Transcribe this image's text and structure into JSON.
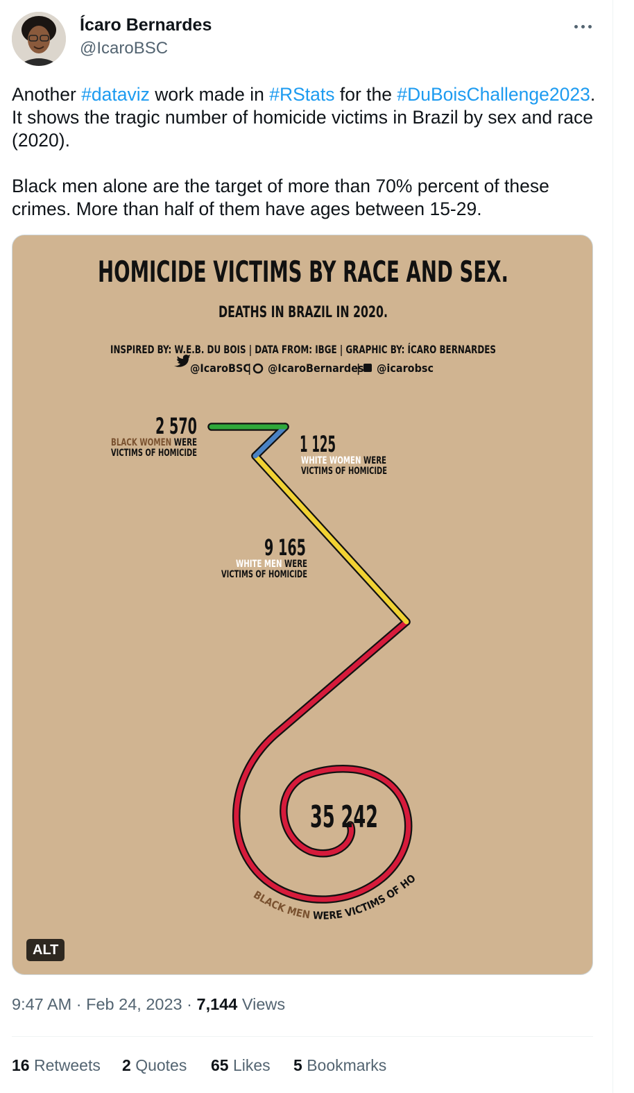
{
  "tweet": {
    "author": {
      "display_name": "Ícaro Bernardes",
      "handle": "@IcaroBSC",
      "avatar_icon": "user-avatar"
    },
    "text_segments": [
      {
        "text": "Another ",
        "type": "text"
      },
      {
        "text": "#dataviz",
        "type": "hashtag"
      },
      {
        "text": " work made in ",
        "type": "text"
      },
      {
        "text": "#RStats",
        "type": "hashtag"
      },
      {
        "text": " for the ",
        "type": "text"
      },
      {
        "text": "#DuBoisChallenge2023",
        "type": "hashtag"
      },
      {
        "text": ". It shows the tragic number of homicide victims in Brazil by sex and race (2020).\n\nBlack men alone are the target of more than 70% percent of these crimes. More than half of them have ages between 15-29.",
        "type": "text"
      }
    ],
    "media": {
      "alt_badge": "ALT",
      "colors": {
        "background": "#d0b491",
        "black_women": "#2fa83a",
        "white_women": "#4a82c3",
        "white_men": "#f1d233",
        "black_men": "#d61b3b",
        "label_brown": "#7a5230"
      },
      "chart_data": {
        "type": "spiral",
        "title": "HOMICIDE VICTIMS BY RACE AND SEX.",
        "subtitle": "DEATHS IN BRAZIL IN 2020.",
        "credits_line1": "INSPIRED BY: W.E.B. DU BOIS | DATA FROM: IBGE | GRAPHIC BY: ÍCARO BERNARDES",
        "credits_twitter": "@IcaroBSC",
        "credits_github": "@IcaroBernardes",
        "credits_linkedin": "@icarobsc",
        "categories": [
          "BLACK WOMEN",
          "WHITE WOMEN",
          "WHITE MEN",
          "BLACK MEN"
        ],
        "values": [
          2570,
          1125,
          9165,
          35242
        ],
        "value_labels": [
          "2 570",
          "1 125",
          "9 165",
          "35 242"
        ],
        "suffix_a": "WERE",
        "suffix_b": "VICTIMS OF HOMICIDE",
        "black_men_suffix": "WERE VICTIMS OF HOMICIDE"
      }
    },
    "time": "9:47 AM",
    "date": "Feb 24, 2023",
    "separator": "·",
    "views_count": "7,144",
    "views_label": "Views",
    "stats": [
      {
        "count": "16",
        "label": "Retweets"
      },
      {
        "count": "2",
        "label": "Quotes"
      },
      {
        "count": "65",
        "label": "Likes"
      },
      {
        "count": "5",
        "label": "Bookmarks"
      }
    ]
  }
}
